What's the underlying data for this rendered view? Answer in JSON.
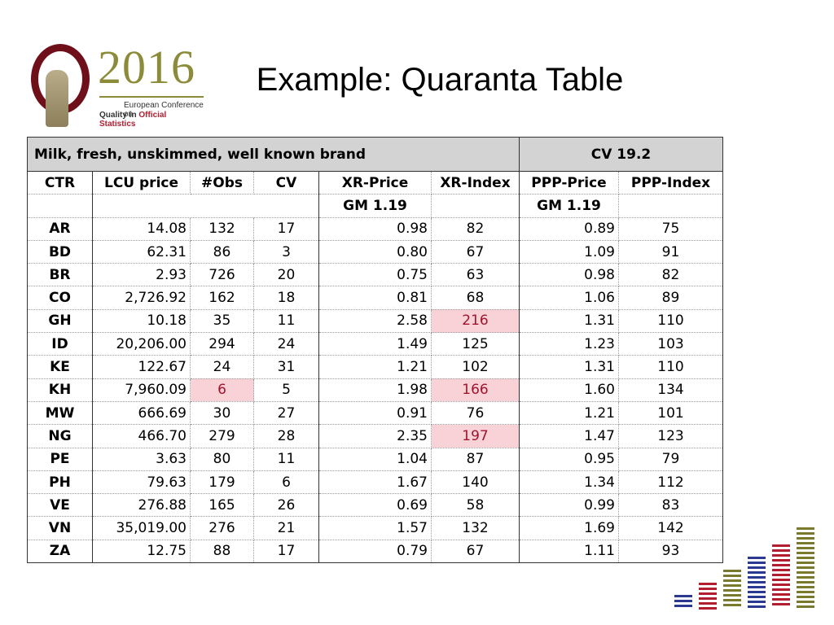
{
  "slide": {
    "title": "Example: Quaranta Table"
  },
  "logo": {
    "year": "2016",
    "line1": "European Conference on",
    "line2_a": "Quality",
    "line2_b": " in ",
    "line2_c": "Official Statistics",
    "colors": {
      "maroon": "#6e0f1a",
      "olive": "#8b8b3a",
      "red": "#b01e2f"
    }
  },
  "table": {
    "product": "Milk, fresh, unskimmed, well known brand",
    "cv_label": "CV 19.2",
    "columns": [
      "CTR",
      "LCU price",
      "#Obs",
      "CV",
      "XR-Price",
      "XR-Index",
      "PPP-Price",
      "PPP-Index"
    ],
    "gm_xr": "GM 1.19",
    "gm_ppp": "GM 1.19",
    "highlight_color": "#f9d2d8",
    "rows": [
      {
        "ctr": "AR",
        "lcu": "14.08",
        "obs": "132",
        "cv": "17",
        "xrp": "0.98",
        "xri": "82",
        "pppp": "0.89",
        "pppi": "75"
      },
      {
        "ctr": "BD",
        "lcu": "62.31",
        "obs": "86",
        "cv": "3",
        "xrp": "0.80",
        "xri": "67",
        "pppp": "1.09",
        "pppi": "91"
      },
      {
        "ctr": "BR",
        "lcu": "2.93",
        "obs": "726",
        "cv": "20",
        "xrp": "0.75",
        "xri": "63",
        "pppp": "0.98",
        "pppi": "82"
      },
      {
        "ctr": "CO",
        "lcu": "2,726.92",
        "obs": "162",
        "cv": "18",
        "xrp": "0.81",
        "xri": "68",
        "pppp": "1.06",
        "pppi": "89"
      },
      {
        "ctr": "GH",
        "lcu": "10.18",
        "obs": "35",
        "cv": "11",
        "xrp": "2.58",
        "xri": "216",
        "pppp": "1.31",
        "pppi": "110",
        "hl_xri": true
      },
      {
        "ctr": "ID",
        "lcu": "20,206.00",
        "obs": "294",
        "cv": "24",
        "xrp": "1.49",
        "xri": "125",
        "pppp": "1.23",
        "pppi": "103"
      },
      {
        "ctr": "KE",
        "lcu": "122.67",
        "obs": "24",
        "cv": "31",
        "xrp": "1.21",
        "xri": "102",
        "pppp": "1.31",
        "pppi": "110"
      },
      {
        "ctr": "KH",
        "lcu": "7,960.09",
        "obs": "6",
        "cv": "5",
        "xrp": "1.98",
        "xri": "166",
        "pppp": "1.60",
        "pppi": "134",
        "hl_obs": true,
        "hl_xri": true
      },
      {
        "ctr": "MW",
        "lcu": "666.69",
        "obs": "30",
        "cv": "27",
        "xrp": "0.91",
        "xri": "76",
        "pppp": "1.21",
        "pppi": "101"
      },
      {
        "ctr": "NG",
        "lcu": "466.70",
        "obs": "279",
        "cv": "28",
        "xrp": "2.35",
        "xri": "197",
        "pppp": "1.47",
        "pppi": "123",
        "hl_xri": true
      },
      {
        "ctr": "PE",
        "lcu": "3.63",
        "obs": "80",
        "cv": "11",
        "xrp": "1.04",
        "xri": "87",
        "pppp": "0.95",
        "pppi": "79"
      },
      {
        "ctr": "PH",
        "lcu": "79.63",
        "obs": "179",
        "cv": "6",
        "xrp": "1.67",
        "xri": "140",
        "pppp": "1.34",
        "pppi": "112"
      },
      {
        "ctr": "VE",
        "lcu": "276.88",
        "obs": "165",
        "cv": "26",
        "xrp": "0.69",
        "xri": "58",
        "pppp": "0.99",
        "pppi": "83"
      },
      {
        "ctr": "VN",
        "lcu": "35,019.00",
        "obs": "276",
        "cv": "21",
        "xrp": "1.57",
        "xri": "132",
        "pppp": "1.69",
        "pppi": "142"
      },
      {
        "ctr": "ZA",
        "lcu": "12.75",
        "obs": "88",
        "cv": "17",
        "xrp": "0.79",
        "xri": "67",
        "pppp": "1.11",
        "pppi": "93"
      }
    ]
  },
  "decor_bars": [
    {
      "color": "#2b3990",
      "level": 0.2
    },
    {
      "color": "#b01e2f",
      "level": 0.35
    },
    {
      "color": "#7a7a2e",
      "level": 0.5
    },
    {
      "color": "#2b3990",
      "level": 0.65
    },
    {
      "color": "#b01e2f",
      "level": 0.8
    },
    {
      "color": "#7a7a2e",
      "level": 1.0
    }
  ]
}
